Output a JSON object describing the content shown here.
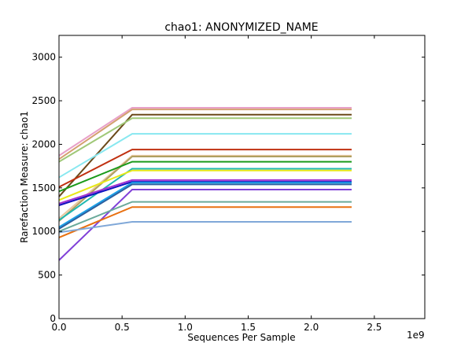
{
  "chart_data": {
    "type": "line",
    "title": "chao1: ANONYMIZED_NAME",
    "xlabel": "Sequences Per Sample",
    "ylabel": "Rarefaction Measure: chao1",
    "x_offset_label": "1e9",
    "x_scale_factor": 1000000000,
    "xlim": [
      0,
      2.9
    ],
    "ylim": [
      0,
      3250
    ],
    "x_ticks": [
      0.0,
      0.5,
      1.0,
      1.5,
      2.0,
      2.5
    ],
    "x_tick_labels": [
      "0.0",
      "0.5",
      "1.0",
      "1.5",
      "2.0",
      "2.5"
    ],
    "y_ticks": [
      0,
      500,
      1000,
      1500,
      2000,
      2500,
      3000
    ],
    "y_tick_labels": [
      "0",
      "500",
      "1000",
      "1500",
      "2000",
      "2500",
      "3000"
    ],
    "grid": false,
    "legend": "none",
    "x": [
      0.0,
      0.58,
      2.32
    ],
    "series": [
      {
        "color": "#e8a0c8",
        "values": [
          1870,
          2420,
          2420
        ]
      },
      {
        "color": "#d4a070",
        "values": [
          1830,
          2400,
          2400
        ]
      },
      {
        "color": "#6b4a1a",
        "values": [
          1400,
          2340,
          2340
        ]
      },
      {
        "color": "#a0c878",
        "values": [
          1800,
          2300,
          2300
        ]
      },
      {
        "color": "#88e8f0",
        "values": [
          1620,
          2120,
          2120
        ]
      },
      {
        "color": "#c03010",
        "values": [
          1510,
          1940,
          1940
        ]
      },
      {
        "color": "#e8c8a0",
        "values": [
          1150,
          1870,
          1870
        ]
      },
      {
        "color": "#b0a060",
        "values": [
          1120,
          1860,
          1860
        ]
      },
      {
        "color": "#1a9a1a",
        "values": [
          1460,
          1800,
          1800
        ]
      },
      {
        "color": "#20b8b0",
        "values": [
          1130,
          1720,
          1720
        ]
      },
      {
        "color": "#e8e818",
        "values": [
          1360,
          1700,
          1700
        ]
      },
      {
        "color": "#a030d0",
        "values": [
          1320,
          1590,
          1590
        ]
      },
      {
        "color": "#1010c0",
        "values": [
          1300,
          1570,
          1570
        ]
      },
      {
        "color": "#1aa0e8",
        "values": [
          1050,
          1560,
          1560
        ]
      },
      {
        "color": "#2a60a0",
        "values": [
          1030,
          1540,
          1540
        ]
      },
      {
        "color": "#8040d8",
        "values": [
          670,
          1480,
          1480
        ]
      },
      {
        "color": "#6aaa9a",
        "values": [
          1000,
          1340,
          1340
        ]
      },
      {
        "color": "#e87010",
        "values": [
          930,
          1280,
          1280
        ]
      },
      {
        "color": "#80a8d8",
        "values": [
          990,
          1110,
          1110
        ]
      }
    ]
  }
}
